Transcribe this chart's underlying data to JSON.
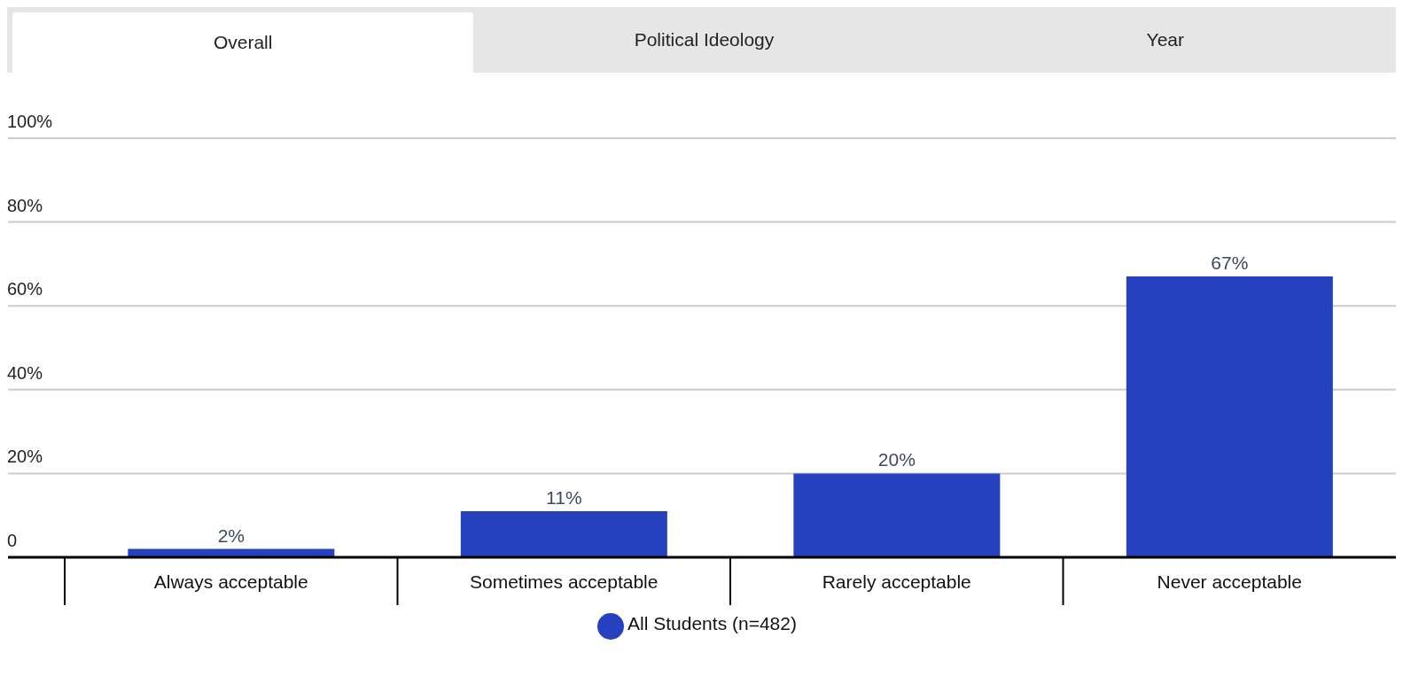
{
  "chart_data": {
    "type": "bar",
    "annotations": [
      "Overall",
      "Political Ideology",
      "Year"
    ],
    "categories": [
      "Always acceptable",
      "Sometimes acceptable",
      "Rarely acceptable",
      "Never acceptable"
    ],
    "series": [
      {
        "name": "All Students (n=482)",
        "color": "#2541bf",
        "values": [
          2,
          11,
          20,
          67
        ],
        "value_labels": [
          "2%",
          "11%",
          "20%",
          "67%"
        ]
      }
    ],
    "ylim": [
      0,
      100
    ],
    "yticks": [
      0,
      {
        "value": 20,
        "label": "20%"
      },
      {
        "value": 40,
        "label": "40%"
      },
      {
        "value": 60,
        "label": "60%"
      },
      {
        "value": 80,
        "label": "80%"
      },
      {
        "value": 100,
        "label": "100%"
      }
    ],
    "grid": "y",
    "legend": "bottom"
  }
}
